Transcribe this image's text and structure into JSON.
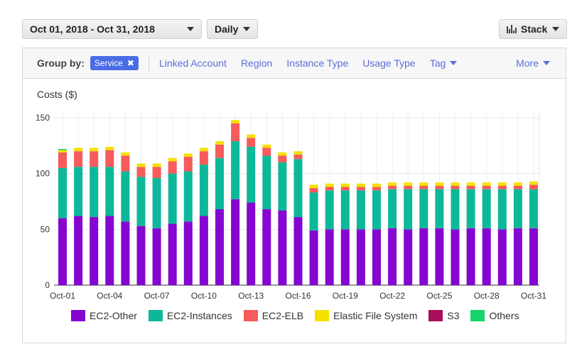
{
  "toolbar": {
    "date_range": "Oct 01, 2018 - Oct 31, 2018",
    "granularity": "Daily",
    "chart_style": "Stack"
  },
  "groupby": {
    "label": "Group by:",
    "active_chip": "Service",
    "options": [
      "Linked Account",
      "Region",
      "Instance Type",
      "Usage Type",
      "Tag"
    ],
    "more": "More"
  },
  "colors": {
    "EC2-Other": "#8505d1",
    "EC2-Instances": "#0db89a",
    "EC2-ELB": "#f75b5b",
    "Elastic File System": "#f5e000",
    "S3": "#a80e5a",
    "Others": "#16d36a"
  },
  "chart_data": {
    "type": "bar",
    "stacked": true,
    "ylabel": "Costs ($)",
    "ylim": [
      0,
      150
    ],
    "yticks": [
      0,
      50,
      100,
      150
    ],
    "grid": true,
    "legend_position": "bottom",
    "x_tick_labels": [
      "Oct-01",
      "Oct-04",
      "Oct-07",
      "Oct-10",
      "Oct-13",
      "Oct-16",
      "Oct-19",
      "Oct-22",
      "Oct-25",
      "Oct-28",
      "Oct-31"
    ],
    "categories": [
      "Oct-01",
      "Oct-02",
      "Oct-03",
      "Oct-04",
      "Oct-05",
      "Oct-06",
      "Oct-07",
      "Oct-08",
      "Oct-09",
      "Oct-10",
      "Oct-11",
      "Oct-12",
      "Oct-13",
      "Oct-14",
      "Oct-15",
      "Oct-16",
      "Oct-17",
      "Oct-18",
      "Oct-19",
      "Oct-20",
      "Oct-21",
      "Oct-22",
      "Oct-23",
      "Oct-24",
      "Oct-25",
      "Oct-26",
      "Oct-27",
      "Oct-28",
      "Oct-29",
      "Oct-30",
      "Oct-31"
    ],
    "series": [
      {
        "name": "EC2-Other",
        "values": [
          60,
          62,
          61,
          62,
          57,
          53,
          51,
          55,
          57,
          62,
          68,
          77,
          74,
          68,
          67,
          61,
          49,
          50,
          50,
          50,
          50,
          51,
          50,
          51,
          51,
          50,
          51,
          51,
          50,
          51,
          51
        ]
      },
      {
        "name": "EC2-Instances",
        "values": [
          45,
          44,
          45,
          44,
          45,
          44,
          45,
          45,
          45,
          46,
          46,
          52,
          50,
          48,
          43,
          52,
          34,
          35,
          35,
          35,
          35,
          35,
          36,
          35,
          35,
          36,
          35,
          35,
          36,
          35,
          35
        ]
      },
      {
        "name": "EC2-ELB",
        "values": [
          14,
          14,
          14,
          15,
          14,
          9,
          10,
          11,
          13,
          12,
          12,
          16,
          8,
          7,
          6,
          4,
          4,
          3,
          3,
          3,
          3,
          3,
          3,
          3,
          3,
          3,
          3,
          3,
          3,
          3,
          4
        ]
      },
      {
        "name": "Elastic File System",
        "values": [
          2,
          3,
          3,
          3,
          3,
          3,
          3,
          3,
          3,
          3,
          3,
          3,
          3,
          3,
          3,
          3,
          3,
          3,
          3,
          3,
          3,
          3,
          3,
          3,
          3,
          3,
          3,
          3,
          3,
          3,
          3
        ]
      },
      {
        "name": "S3",
        "values": [
          0,
          0,
          0,
          0,
          0,
          0,
          0,
          0,
          0,
          0,
          0,
          0,
          0,
          0,
          0,
          0,
          0,
          0,
          0,
          0,
          0,
          0,
          0,
          0,
          0,
          0,
          0,
          0,
          0,
          0,
          0
        ]
      },
      {
        "name": "Others",
        "values": [
          1,
          0,
          0,
          0,
          0,
          0,
          0,
          0,
          0,
          0,
          0,
          0,
          0,
          0,
          0,
          0,
          0,
          0,
          0,
          0,
          0,
          0,
          0,
          0,
          0,
          0,
          0,
          0,
          0,
          0,
          0
        ]
      }
    ]
  }
}
